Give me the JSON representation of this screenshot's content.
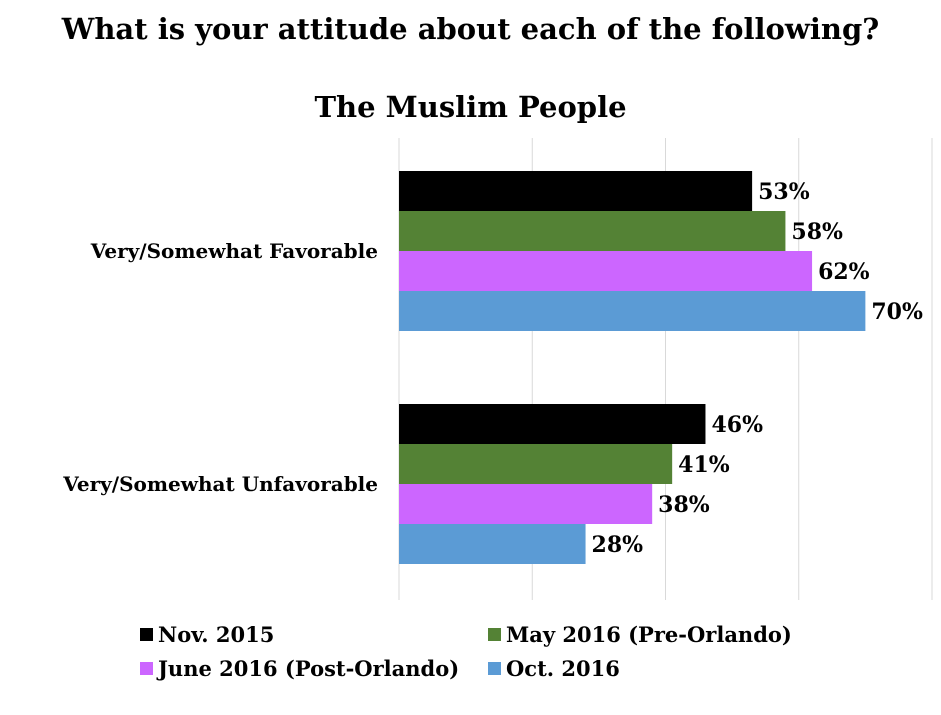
{
  "chart_data": {
    "type": "bar",
    "orientation": "horizontal",
    "title": "What is your attitude about each of the following?",
    "subtitle": "The Muslim People",
    "categories": [
      "Very/Somewhat Favorable",
      "Very/Somewhat Unfavorable"
    ],
    "series": [
      {
        "name": "Nov. 2015",
        "color": "#000000",
        "values": [
          53,
          46
        ]
      },
      {
        "name": "May 2016 (Pre-Orlando)",
        "color": "#548235",
        "values": [
          58,
          41
        ]
      },
      {
        "name": "June 2016 (Post-Orlando)",
        "color": "#cc66ff",
        "values": [
          62,
          38
        ]
      },
      {
        "name": "Oct. 2016",
        "color": "#5b9bd5",
        "values": [
          70,
          28
        ]
      }
    ],
    "value_suffix": "%",
    "xlim": [
      0,
      80
    ],
    "grid": true,
    "legend": "bottom"
  }
}
